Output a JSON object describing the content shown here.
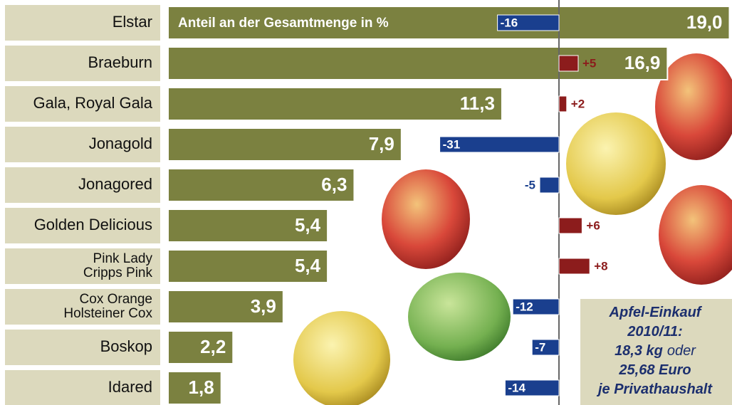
{
  "chart_data": {
    "type": "bar",
    "categories": [
      "Elstar",
      "Braeburn",
      "Gala, Royal Gala",
      "Jonagold",
      "Jonagored",
      "Golden Delicious",
      [
        "Pink Lady",
        "Cripps Pink"
      ],
      [
        "Cox Orange",
        "Holsteiner Cox"
      ],
      "Boskop",
      "Idared"
    ],
    "series": [
      {
        "name": "Anteil an der Gesamtmenge in %",
        "color": "#7b8140",
        "values": [
          19.0,
          16.9,
          11.3,
          7.9,
          6.3,
          5.4,
          5.4,
          3.9,
          2.2,
          1.8
        ],
        "value_labels": [
          "19,0",
          "16,9",
          "11,3",
          "7,9",
          "6,3",
          "5,4",
          "5,4",
          "3,9",
          "2,2",
          "1,8"
        ]
      }
    ],
    "changes": {
      "color_negative": "#1a3f8e",
      "color_positive": "#8c1c1c",
      "values": [
        -16,
        5,
        2,
        -31,
        -5,
        6,
        8,
        -12,
        -7,
        -14
      ],
      "value_labels": [
        "-16",
        "+5",
        "+2",
        "-31",
        "-5",
        "+6",
        "+8",
        "-12",
        "-7",
        "-14"
      ]
    },
    "note": [
      [
        "Apfel-Einkauf"
      ],
      [
        "2010/11:"
      ],
      [
        "18,3 kg",
        "oder"
      ],
      [
        "25,68 Euro"
      ],
      [
        "je Privathaushalt"
      ]
    ]
  }
}
